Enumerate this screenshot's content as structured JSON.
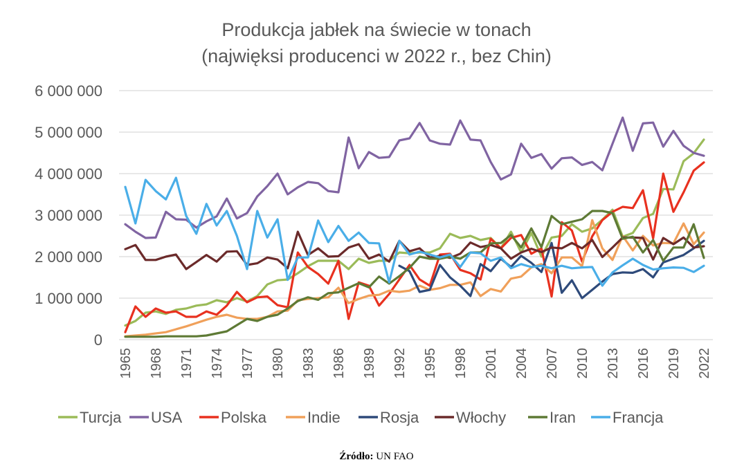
{
  "source": {
    "label": "Źródło:",
    "value": "UN FAO"
  },
  "chart_data": {
    "type": "line",
    "title": "Produkcja jabłek na świecie w tonach",
    "subtitle": "(najwięksi producenci w 2022 r., bez Chin)",
    "xlabel": "",
    "ylabel": "",
    "ylim": [
      0,
      6000000
    ],
    "yticks": [
      0,
      1000000,
      2000000,
      3000000,
      4000000,
      5000000,
      6000000
    ],
    "ytick_labels": [
      "0",
      "1 000 000",
      "2 000 000",
      "3 000 000",
      "4 000 000",
      "5 000 000",
      "6 000 000"
    ],
    "xlim": [
      1965,
      2022
    ],
    "xtick_labels": [
      "1965",
      "1968",
      "1971",
      "1974",
      "1977",
      "1980",
      "1983",
      "1986",
      "1989",
      "1992",
      "1995",
      "1998",
      "2001",
      "2004",
      "2007",
      "2010",
      "2013",
      "2016",
      "2019",
      "2022"
    ],
    "grid": true,
    "legend": "bottom",
    "value_scale": 1000000,
    "x_start": 1965,
    "series": [
      {
        "name": "Turcja",
        "color": "#9bbb59",
        "start": 1965,
        "values": [
          0.34,
          0.45,
          0.65,
          0.68,
          0.62,
          0.72,
          0.75,
          0.82,
          0.85,
          0.95,
          0.9,
          1.0,
          0.92,
          1.05,
          1.33,
          1.43,
          1.45,
          1.6,
          1.77,
          1.9,
          1.9,
          1.9,
          1.7,
          1.95,
          1.85,
          1.9,
          1.9,
          2.1,
          2.08,
          2.1,
          2.1,
          2.2,
          2.55,
          2.45,
          2.5,
          2.4,
          2.45,
          2.2,
          2.6,
          2.1,
          2.57,
          2.0,
          2.46,
          2.5,
          2.78,
          2.6,
          2.68,
          2.89,
          3.13,
          2.48,
          2.57,
          2.93,
          3.03,
          3.63,
          3.62,
          4.3,
          4.49,
          4.82
        ]
      },
      {
        "name": "USA",
        "color": "#8064a2",
        "start": 1965,
        "values": [
          2.78,
          2.6,
          2.45,
          2.46,
          3.08,
          2.9,
          2.89,
          2.7,
          2.85,
          2.97,
          3.4,
          2.92,
          3.05,
          3.45,
          3.7,
          4.0,
          3.5,
          3.67,
          3.8,
          3.77,
          3.58,
          3.55,
          4.87,
          4.13,
          4.52,
          4.38,
          4.4,
          4.8,
          4.85,
          5.22,
          4.8,
          4.72,
          4.7,
          5.28,
          4.82,
          4.8,
          4.28,
          3.86,
          3.98,
          4.72,
          4.38,
          4.47,
          4.12,
          4.37,
          4.39,
          4.21,
          4.28,
          4.08,
          4.72,
          5.35,
          4.55,
          5.21,
          5.23,
          4.65,
          5.03,
          4.67,
          4.5,
          4.43
        ]
      },
      {
        "name": "Polska",
        "color": "#e8311f",
        "start": 1965,
        "values": [
          0.18,
          0.8,
          0.55,
          0.75,
          0.65,
          0.68,
          0.55,
          0.55,
          0.68,
          0.6,
          0.82,
          1.15,
          0.9,
          1.02,
          1.04,
          0.83,
          0.78,
          2.1,
          1.75,
          1.58,
          1.35,
          1.9,
          0.5,
          1.38,
          1.3,
          0.82,
          1.1,
          1.45,
          1.8,
          1.45,
          1.3,
          2.05,
          2.07,
          1.68,
          1.6,
          1.45,
          2.43,
          2.2,
          2.45,
          2.52,
          2.07,
          2.2,
          1.04,
          2.83,
          2.63,
          1.88,
          2.49,
          2.88,
          3.08,
          3.2,
          3.17,
          3.6,
          2.44,
          4.0,
          3.08,
          3.55,
          4.07,
          4.27
        ]
      },
      {
        "name": "Indie",
        "color": "#f0a05a",
        "start": 1965,
        "values": [
          0.08,
          0.1,
          0.12,
          0.15,
          0.18,
          0.25,
          0.32,
          0.4,
          0.48,
          0.55,
          0.6,
          0.53,
          0.5,
          0.5,
          0.55,
          0.68,
          0.7,
          0.95,
          0.98,
          1.0,
          1.02,
          1.25,
          0.88,
          0.98,
          1.06,
          1.08,
          1.18,
          1.15,
          1.18,
          1.3,
          1.2,
          1.24,
          1.32,
          1.32,
          1.38,
          1.05,
          1.22,
          1.16,
          1.47,
          1.52,
          1.74,
          1.82,
          1.6,
          1.98,
          1.98,
          1.77,
          2.88,
          2.2,
          1.92,
          2.5,
          2.15,
          2.5,
          2.27,
          2.33,
          2.32,
          2.8,
          2.3,
          2.58
        ]
      },
      {
        "name": "Rosja",
        "color": "#2e4a7a",
        "start": 1992,
        "values": [
          1.78,
          1.65,
          1.15,
          1.2,
          1.8,
          1.5,
          1.3,
          1.05,
          1.82,
          1.65,
          1.95,
          1.75,
          2.02,
          1.85,
          1.63,
          2.33,
          1.13,
          1.43,
          1.0,
          1.2,
          1.4,
          1.58,
          1.62,
          1.61,
          1.7,
          1.5,
          1.86,
          1.95,
          2.04,
          2.2,
          2.38
        ]
      },
      {
        "name": "Włochy",
        "color": "#6b2a2a",
        "start": 1965,
        "values": [
          2.18,
          2.28,
          1.92,
          1.92,
          2.0,
          2.05,
          1.7,
          1.87,
          2.04,
          1.88,
          2.12,
          2.13,
          1.8,
          1.84,
          1.98,
          1.93,
          1.72,
          2.6,
          2.04,
          2.2,
          2.0,
          2.01,
          2.22,
          2.3,
          1.95,
          2.05,
          1.88,
          2.38,
          2.13,
          2.2,
          1.98,
          2.02,
          1.97,
          2.07,
          2.34,
          2.23,
          2.28,
          2.2,
          1.95,
          2.1,
          2.19,
          2.11,
          2.22,
          2.2,
          2.33,
          2.2,
          2.4,
          1.99,
          2.22,
          2.46,
          2.46,
          2.45,
          1.93,
          2.45,
          2.3,
          2.46,
          2.22,
          2.25
        ]
      },
      {
        "name": "Iran",
        "color": "#5e7a35",
        "start": 1965,
        "values": [
          0.07,
          0.07,
          0.07,
          0.07,
          0.08,
          0.08,
          0.08,
          0.08,
          0.1,
          0.15,
          0.2,
          0.35,
          0.5,
          0.45,
          0.55,
          0.6,
          0.75,
          0.93,
          1.02,
          0.96,
          1.12,
          1.14,
          1.25,
          1.36,
          1.26,
          1.52,
          1.35,
          1.53,
          1.73,
          2.0,
          1.95,
          1.95,
          2.0,
          1.95,
          2.1,
          2.1,
          2.32,
          2.33,
          2.52,
          2.22,
          2.68,
          2.23,
          2.98,
          2.78,
          2.84,
          2.9,
          3.1,
          3.1,
          3.05,
          2.43,
          2.48,
          2.1,
          2.4,
          1.9,
          2.22,
          2.22,
          2.78,
          1.97
        ]
      },
      {
        "name": "Francja",
        "color": "#4aaee8",
        "start": 1965,
        "values": [
          3.68,
          2.8,
          3.85,
          3.58,
          3.38,
          3.9,
          2.98,
          2.55,
          3.27,
          2.75,
          3.1,
          2.5,
          1.7,
          3.1,
          2.46,
          2.9,
          1.44,
          1.98,
          1.98,
          2.87,
          2.35,
          2.74,
          2.38,
          2.58,
          2.33,
          2.32,
          1.38,
          2.38,
          2.05,
          2.12,
          2.05,
          1.98,
          2.05,
          1.75,
          2.1,
          2.08,
          1.9,
          1.98,
          1.72,
          1.82,
          1.75,
          1.78,
          1.72,
          1.78,
          1.72,
          1.74,
          1.75,
          1.3,
          1.62,
          1.79,
          1.95,
          1.8,
          1.69,
          1.72,
          1.74,
          1.73,
          1.63,
          1.78
        ]
      }
    ]
  }
}
